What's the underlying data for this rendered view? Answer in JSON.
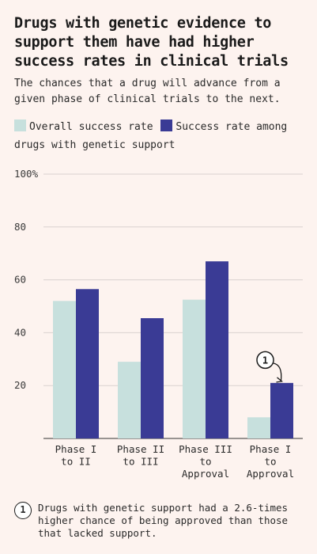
{
  "title": "Drugs with genetic evidence to support them have had higher success rates in clinical trials",
  "subtitle": "The chances that a drug will advance from a given phase of clinical trials to the next.",
  "colors": {
    "overall": "#c7e0dd",
    "genetic": "#3a3b95",
    "grid": "#d9d2cf",
    "background": "#fdf3ef"
  },
  "note": {
    "marker": "1",
    "text": "Drugs with genetic support had a 2.6-times higher chance of being approved than those that lacked support."
  },
  "chart_data": {
    "type": "bar",
    "categories": [
      [
        "Phase I",
        "to II"
      ],
      [
        "Phase II",
        "to III"
      ],
      [
        "Phase III",
        "to",
        "Approval"
      ],
      [
        "Phase I",
        "to",
        "Approval"
      ]
    ],
    "series": [
      {
        "name": "Overall success rate",
        "values": [
          52,
          29,
          52.5,
          8
        ]
      },
      {
        "name": "Success rate among drugs with genetic support",
        "values": [
          56.5,
          45.5,
          67,
          21
        ]
      }
    ],
    "ylim": [
      0,
      100
    ],
    "yticks": [
      20,
      40,
      60,
      80,
      100
    ],
    "ytick_labels": [
      "20",
      "40",
      "60",
      "80",
      "100%"
    ],
    "annotation": {
      "label": "1",
      "category_index": 3,
      "series_index": 1
    },
    "grid": true,
    "legend": "top-left"
  }
}
